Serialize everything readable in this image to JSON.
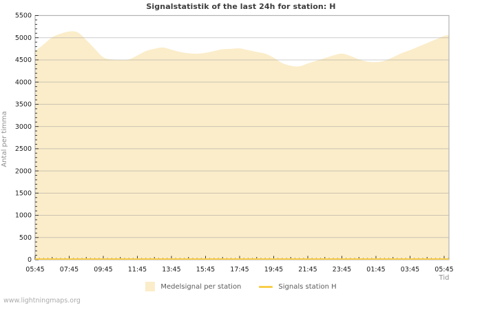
{
  "footer": {
    "text": "www.lightningmaps.org"
  },
  "chart_data": {
    "type": "area",
    "title": "Signalstatistik of the last 24h for station: H",
    "xlabel": "Tid",
    "ylabel": "Antal per timma",
    "ylim": [
      0,
      5500
    ],
    "ytick_step": 500,
    "ytick_minor_step": 100,
    "yticks": [
      0,
      500,
      1000,
      1500,
      2000,
      2500,
      3000,
      3500,
      4000,
      4500,
      5000,
      5500
    ],
    "grid": "horizontal-major",
    "x_total_hours": 24,
    "x_step_hours": 0.5,
    "x_start_label": "05:45",
    "x_minor_tick_minutes": 15,
    "xtick_label_step_hours": 2,
    "xtick_labels": [
      "05:45",
      "07:45",
      "09:45",
      "11:45",
      "13:45",
      "15:45",
      "17:45",
      "19:45",
      "21:45",
      "23:45",
      "01:45",
      "03:45",
      "05:45"
    ],
    "series": [
      {
        "name": "Medelsignal per station",
        "type": "area",
        "color": "#FBEDCA",
        "interval_minutes": 30,
        "values": [
          4700,
          4850,
          5010,
          5090,
          5140,
          5120,
          4950,
          4750,
          4560,
          4510,
          4500,
          4510,
          4600,
          4700,
          4750,
          4780,
          4730,
          4680,
          4650,
          4640,
          4660,
          4700,
          4740,
          4750,
          4760,
          4720,
          4680,
          4640,
          4550,
          4430,
          4370,
          4355,
          4420,
          4480,
          4540,
          4600,
          4640,
          4590,
          4510,
          4460,
          4450,
          4480,
          4560,
          4650,
          4720,
          4800,
          4880,
          4960,
          5040
        ],
        "value_at_right_edge": 5060
      },
      {
        "name": "Signals station H",
        "type": "line",
        "color": "#F9CD49",
        "values_constant": 0
      }
    ],
    "legend": [
      {
        "label": "Medelsignal per station",
        "marker": "square",
        "color": "#FBEDCA"
      },
      {
        "label": "Signals station H",
        "marker": "line",
        "color": "#F9CD49"
      }
    ],
    "legend_position": "bottom-center",
    "colors": {
      "area": "#FBEDCA",
      "line": "#F9CD49",
      "grid": "#999999",
      "plot_border": "#B2B2B2",
      "tick": "#333333",
      "tick_label": "#1C1C1C",
      "title": "#3C3C3C",
      "muted": "#8F8F8F",
      "legend_text": "#5A5A5A",
      "footer": "#ABABAB"
    }
  }
}
